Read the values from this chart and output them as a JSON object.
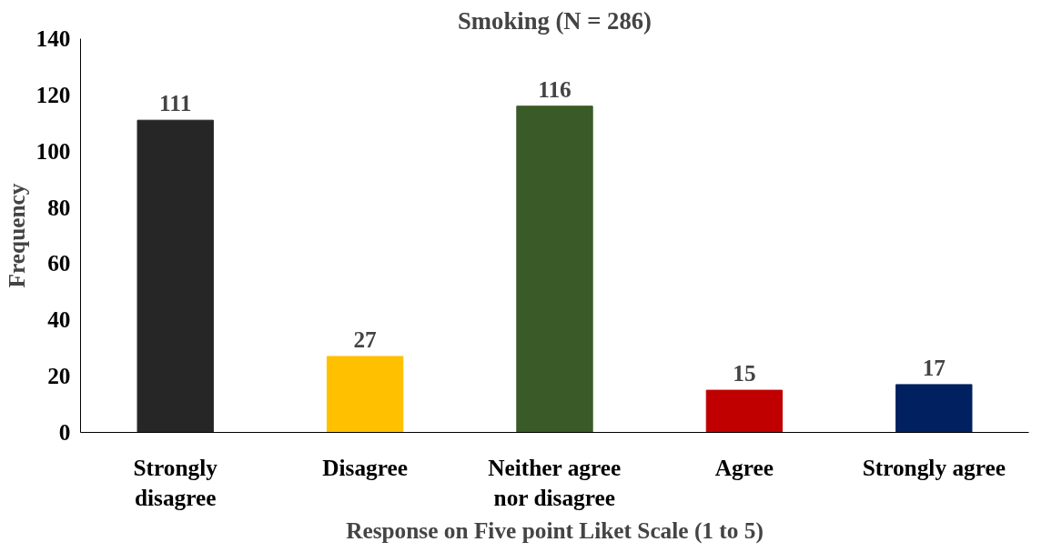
{
  "chart_data": {
    "type": "bar",
    "title": "Smoking (N = 286)",
    "xlabel": "Response on Five point Liket Scale (1 to 5)",
    "ylabel": "Frequency",
    "categories": [
      "Strongly disagree",
      "Disagree",
      "Neither agree nor disagree",
      "Agree",
      "Strongly agree"
    ],
    "values": [
      111,
      27,
      116,
      15,
      17
    ],
    "colors": [
      "#262626",
      "#ffc000",
      "#3a5a27",
      "#c00000",
      "#002060"
    ],
    "ylim": [
      0,
      140
    ],
    "yticks": [
      0,
      20,
      40,
      60,
      80,
      100,
      120,
      140
    ],
    "grid": false,
    "data_labels": true
  }
}
